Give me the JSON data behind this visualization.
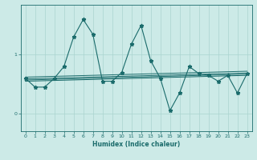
{
  "xlabel": "Humidex (Indice chaleur)",
  "ylabel": "",
  "background_color": "#cceae7",
  "line_color": "#1a6b6b",
  "grid_color": "#aad4d0",
  "x_min": -0.5,
  "x_max": 23.5,
  "y_min": -0.3,
  "y_max": 1.85,
  "yticks": [
    0,
    1
  ],
  "xticks": [
    0,
    1,
    2,
    3,
    4,
    5,
    6,
    7,
    8,
    9,
    10,
    11,
    12,
    13,
    14,
    15,
    16,
    17,
    18,
    19,
    20,
    21,
    22,
    23
  ],
  "main_series": [
    [
      0,
      0.6
    ],
    [
      1,
      0.45
    ],
    [
      2,
      0.45
    ],
    [
      3,
      0.6
    ],
    [
      4,
      0.8
    ],
    [
      5,
      1.3
    ],
    [
      6,
      1.6
    ],
    [
      7,
      1.35
    ],
    [
      8,
      0.55
    ],
    [
      9,
      0.55
    ],
    [
      10,
      0.7
    ],
    [
      11,
      1.18
    ],
    [
      12,
      1.5
    ],
    [
      13,
      0.9
    ],
    [
      14,
      0.6
    ],
    [
      15,
      0.05
    ],
    [
      16,
      0.35
    ],
    [
      17,
      0.8
    ],
    [
      18,
      0.68
    ],
    [
      19,
      0.65
    ],
    [
      20,
      0.55
    ],
    [
      21,
      0.65
    ],
    [
      22,
      0.35
    ],
    [
      23,
      0.68
    ]
  ],
  "trend_lines": [
    {
      "x0": 0,
      "x1": 23,
      "y0": 0.62,
      "y1": 0.72
    },
    {
      "x0": 0,
      "x1": 23,
      "y0": 0.59,
      "y1": 0.69
    },
    {
      "x0": 0,
      "x1": 23,
      "y0": 0.57,
      "y1": 0.67
    },
    {
      "x0": 0,
      "x1": 23,
      "y0": 0.55,
      "y1": 0.65
    }
  ]
}
